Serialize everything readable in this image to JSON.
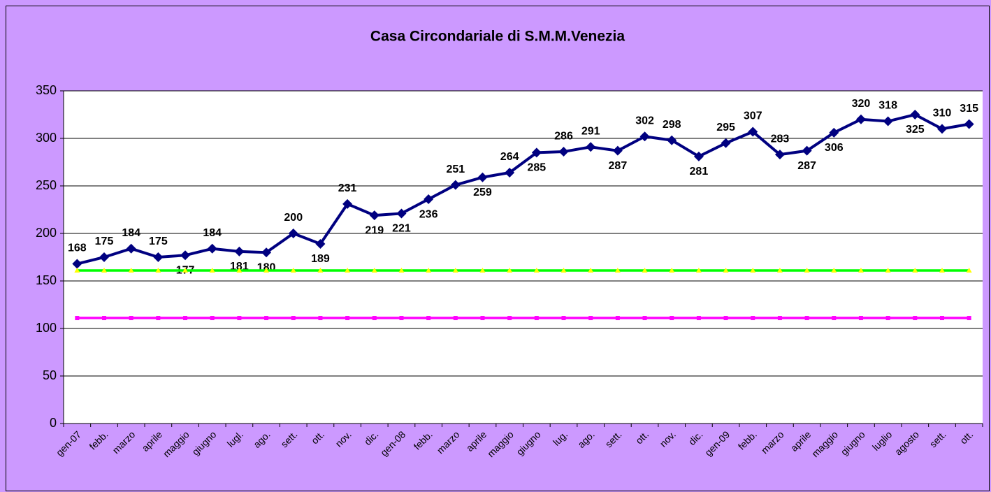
{
  "chart_data": {
    "type": "line",
    "title": "Casa Circondariale di S.M.M.Venezia",
    "categories": [
      "gen-07",
      "febb.",
      "marzo",
      "aprile",
      "maggio",
      "giugno",
      "lugl.",
      "ago.",
      "sett.",
      "ott.",
      "nov.",
      "dic.",
      "gen-08",
      "febb.",
      "marzo",
      "aprile",
      "maggio",
      "giugno",
      "lug.",
      "ago.",
      "sett.",
      "ott.",
      "nov.",
      "dic.",
      "gen-09",
      "febb.",
      "marzo",
      "aprile",
      "maggio",
      "giugno",
      "luglio",
      "agosto",
      "sett.",
      "ott."
    ],
    "series": [
      {
        "color": "#000080",
        "marker": "diamond",
        "labels": true,
        "values": [
          168,
          175,
          184,
          175,
          177,
          184,
          181,
          180,
          200,
          189,
          231,
          219,
          221,
          236,
          251,
          259,
          264,
          285,
          286,
          291,
          287,
          302,
          298,
          281,
          295,
          307,
          283,
          287,
          306,
          320,
          318,
          325,
          310,
          315
        ]
      },
      {
        "color": "#00ff00",
        "marker_color": "#ffff00",
        "marker": "triangle",
        "values": [
          161,
          161,
          161,
          161,
          161,
          161,
          161,
          161,
          161,
          161,
          161,
          161,
          161,
          161,
          161,
          161,
          161,
          161,
          161,
          161,
          161,
          161,
          161,
          161,
          161,
          161,
          161,
          161,
          161,
          161,
          161,
          161,
          161,
          161
        ]
      },
      {
        "color": "#ff00ff",
        "marker": "square",
        "values": [
          111,
          111,
          111,
          111,
          111,
          111,
          111,
          111,
          111,
          111,
          111,
          111,
          111,
          111,
          111,
          111,
          111,
          111,
          111,
          111,
          111,
          111,
          111,
          111,
          111,
          111,
          111,
          111,
          111,
          111,
          111,
          111,
          111,
          111
        ]
      }
    ],
    "ylim": [
      0,
      350
    ],
    "yticks": [
      0,
      50,
      100,
      150,
      200,
      250,
      300,
      350
    ],
    "grid": true
  }
}
